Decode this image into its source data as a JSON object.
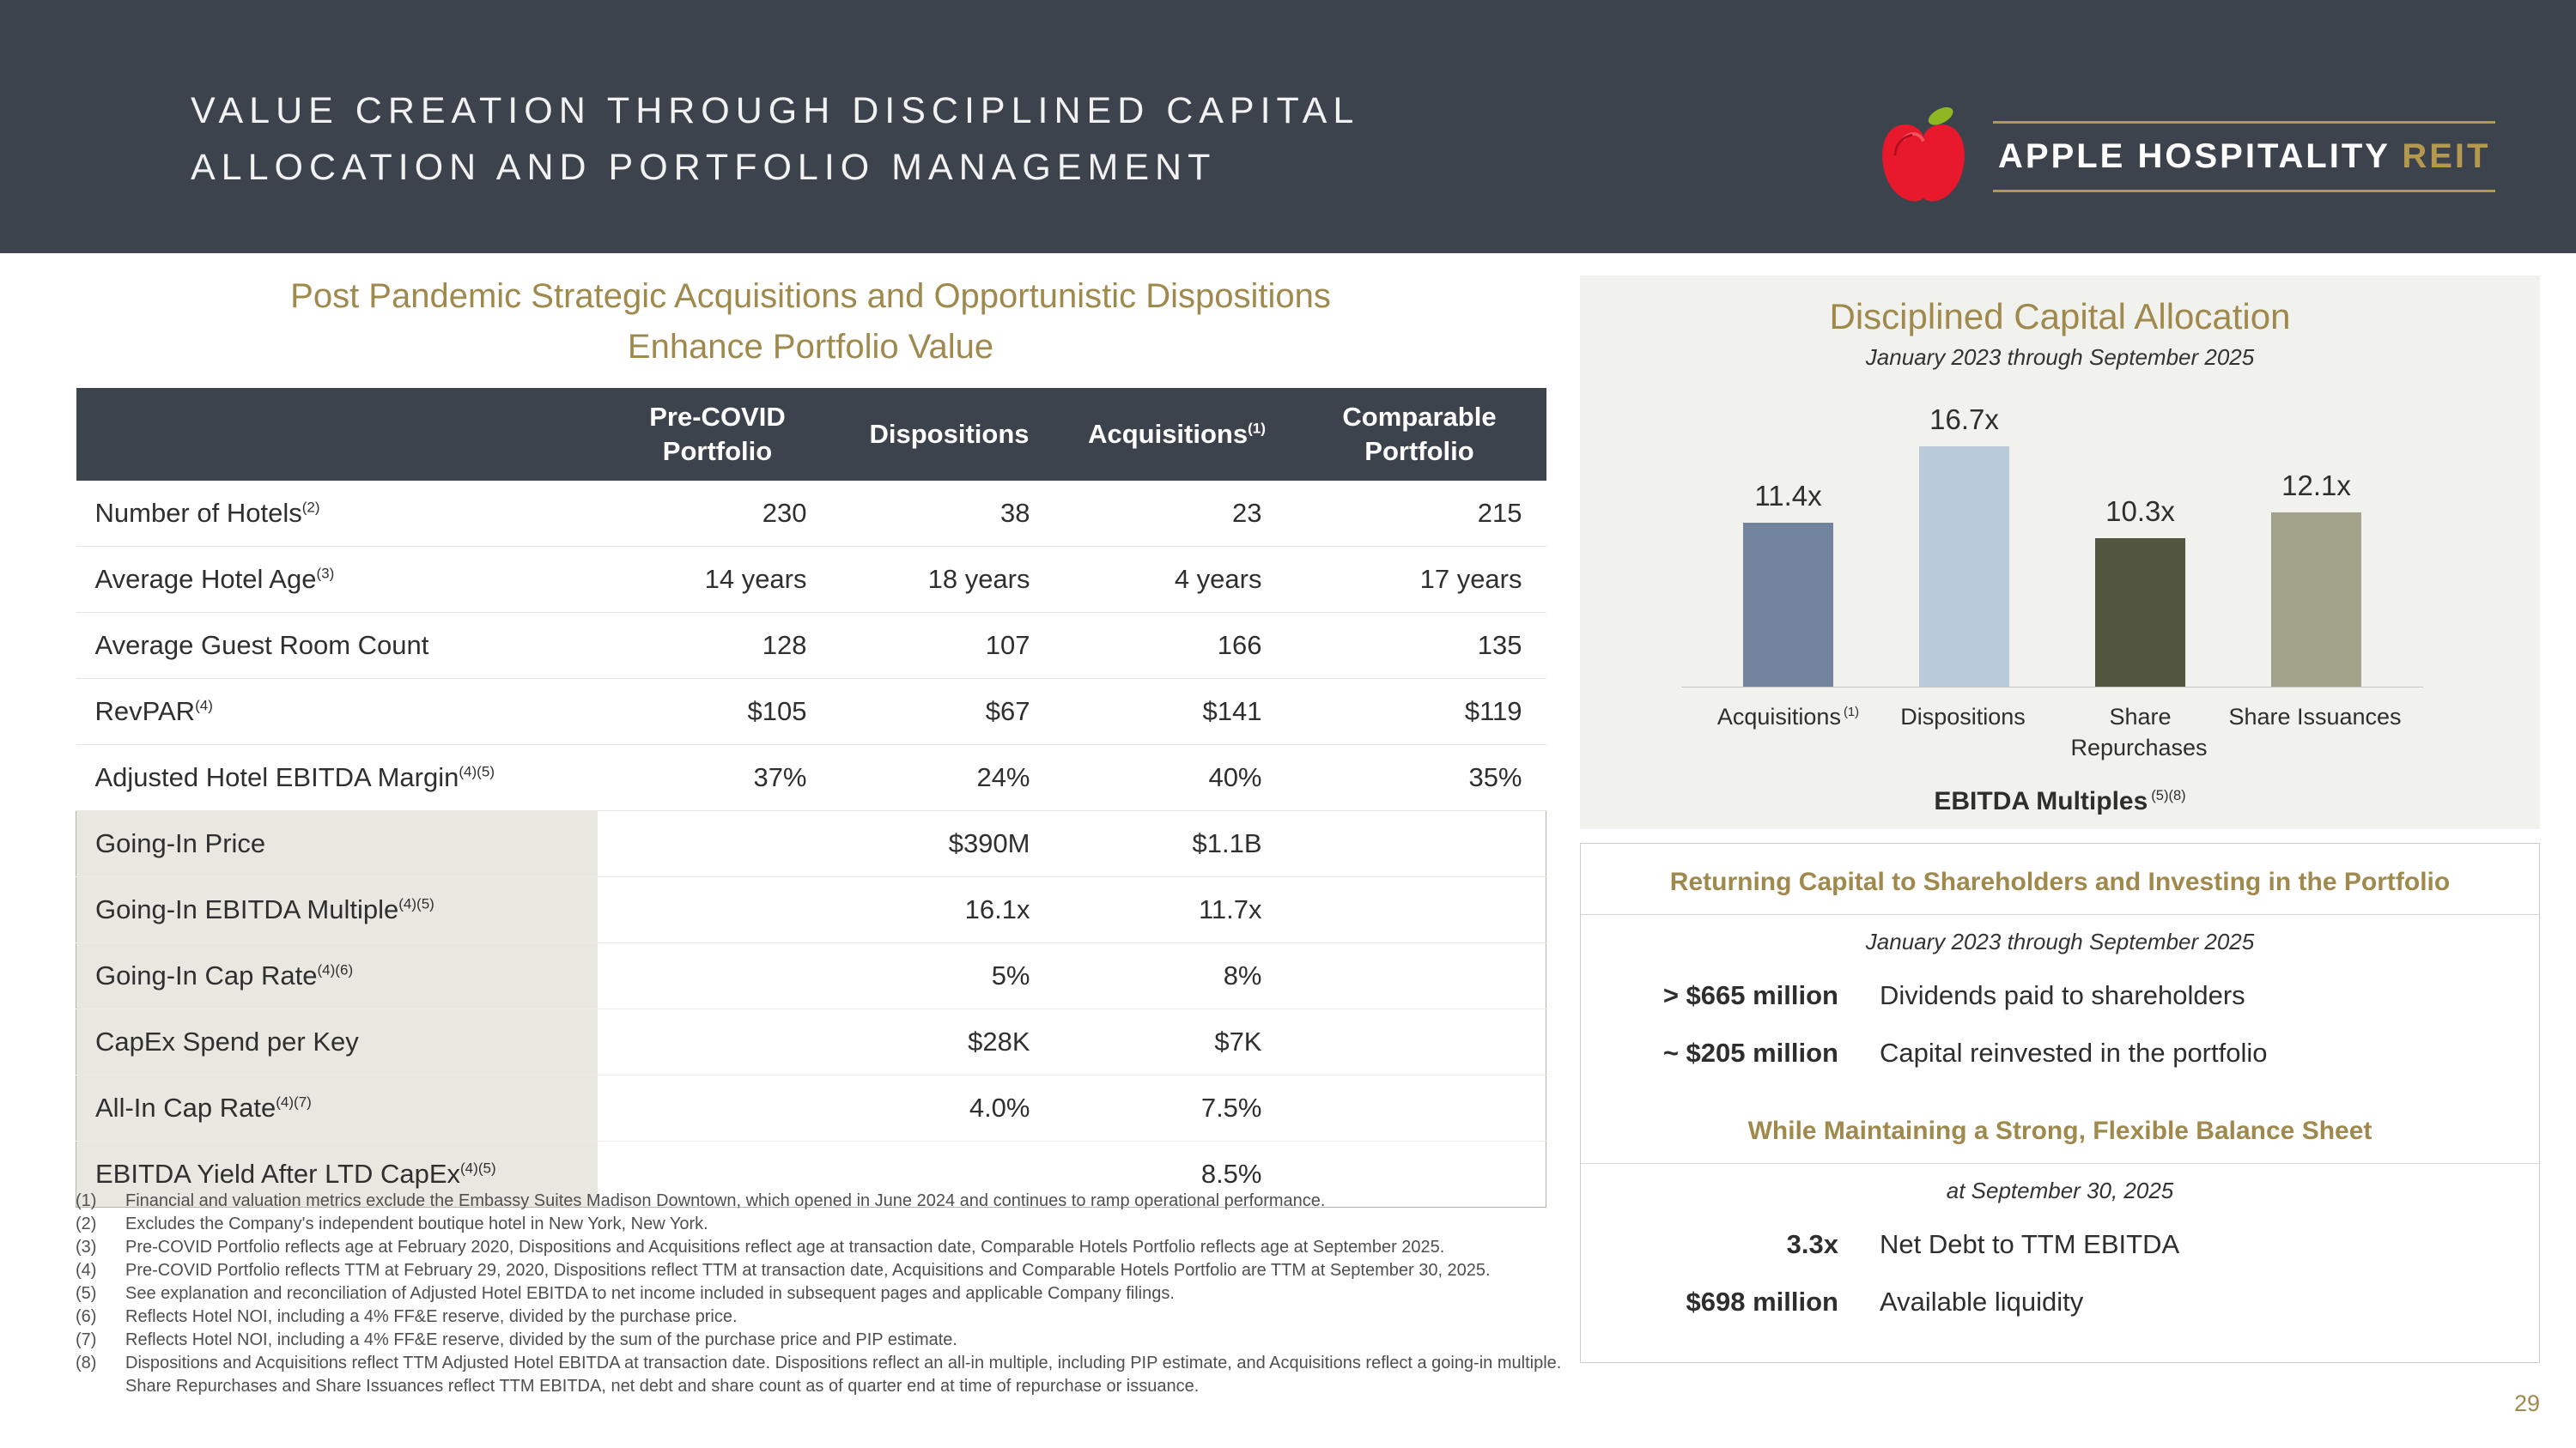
{
  "header": {
    "title_line1": "VALUE CREATION THROUGH DISCIPLINED CAPITAL",
    "title_line2": "ALLOCATION AND PORTFOLIO MANAGEMENT",
    "brand": {
      "name": "APPLE HOSPITALITY",
      "suffix": "REIT"
    }
  },
  "left": {
    "title_line1": "Post Pandemic Strategic Acquisitions and Opportunistic Dispositions",
    "title_line2": "Enhance Portfolio Value",
    "table": {
      "columns": [
        {
          "text": "Pre-COVID\nPortfolio",
          "sup": ""
        },
        {
          "text": "Dispositions",
          "sup": ""
        },
        {
          "text": "Acquisitions",
          "sup": "(1)"
        },
        {
          "text": "Comparable\nPortfolio",
          "sup": ""
        }
      ],
      "rows": [
        {
          "label": "Number of Hotels",
          "sup": "(2)",
          "values": [
            "230",
            "38",
            "23",
            "215"
          ]
        },
        {
          "label": "Average Hotel Age",
          "sup": "(3)",
          "values": [
            "14 years",
            "18 years",
            "4 years",
            "17 years"
          ]
        },
        {
          "label": "Average Guest Room Count",
          "sup": "",
          "values": [
            "128",
            "107",
            "166",
            "135"
          ]
        },
        {
          "label": "RevPAR",
          "sup": "(4)",
          "values": [
            "$105",
            "$67",
            "$141",
            "$119"
          ]
        },
        {
          "label": "Adjusted Hotel EBITDA Margin",
          "sup": "(4)(5)",
          "values": [
            "37%",
            "24%",
            "40%",
            "35%"
          ]
        },
        {
          "label": "Going-In Price",
          "sup": "",
          "values": [
            "",
            "$390M",
            "$1.1B",
            ""
          ]
        },
        {
          "label": "Going-In EBITDA Multiple",
          "sup": "(4)(5)",
          "values": [
            "",
            "16.1x",
            "11.7x",
            ""
          ]
        },
        {
          "label": "Going-In Cap Rate",
          "sup": "(4)(6)",
          "values": [
            "",
            "5%",
            "8%",
            ""
          ]
        },
        {
          "label": "CapEx Spend per Key",
          "sup": "",
          "values": [
            "",
            "$28K",
            "$7K",
            ""
          ]
        },
        {
          "label": "All-In Cap Rate",
          "sup": "(4)(7)",
          "values": [
            "",
            "4.0%",
            "7.5%",
            ""
          ]
        },
        {
          "label": "EBITDA Yield After LTD CapEx",
          "sup": "(4)(5)",
          "values": [
            "",
            "",
            "8.5%",
            ""
          ]
        }
      ]
    },
    "footnotes": [
      {
        "num": "(1)",
        "text": "Financial and valuation metrics exclude the Embassy Suites Madison Downtown, which opened in June 2024 and continues to ramp operational performance."
      },
      {
        "num": "(2)",
        "text": "Excludes the Company's independent boutique hotel in New York, New York."
      },
      {
        "num": "(3)",
        "text": "Pre-COVID Portfolio reflects age at February 2020, Dispositions and Acquisitions reflect age at transaction date, Comparable Hotels Portfolio reflects age at September 2025."
      },
      {
        "num": "(4)",
        "text": "Pre-COVID Portfolio reflects TTM at February 29, 2020, Dispositions reflect TTM at transaction date, Acquisitions and Comparable Hotels Portfolio are TTM at September 30, 2025."
      },
      {
        "num": "(5)",
        "text": "See explanation and reconciliation of Adjusted Hotel EBITDA to net income included in subsequent pages and applicable Company filings."
      },
      {
        "num": "(6)",
        "text": "Reflects Hotel NOI, including a 4% FF&E reserve, divided by the purchase price."
      },
      {
        "num": "(7)",
        "text": "Reflects Hotel NOI, including a 4% FF&E reserve, divided by the sum of the purchase price and PIP estimate."
      },
      {
        "num": "(8)",
        "text": "Dispositions and Acquisitions reflect TTM Adjusted Hotel EBITDA at transaction date. Dispositions reflect an all-in multiple, including PIP estimate, and Acquisitions reflect a going-in multiple. Share Repurchases and Share Issuances reflect TTM EBITDA, net debt and share count as of quarter end at time of repurchase or issuance."
      }
    ]
  },
  "capital_allocation": {
    "title": "Disciplined Capital Allocation",
    "subtitle": "January 2023 through September 2025",
    "footer_label": "EBITDA Multiples",
    "footer_sup": "(5)(8)"
  },
  "chart_data": {
    "type": "bar",
    "title": "Disciplined Capital Allocation",
    "subtitle": "January 2023 through September 2025",
    "categories": [
      "Acquisitions",
      "Dispositions",
      "Share Repurchases",
      "Share Issuances"
    ],
    "category_sups": [
      "(1)",
      "",
      "",
      ""
    ],
    "values": [
      11.4,
      16.7,
      10.3,
      12.1
    ],
    "value_labels": [
      "11.4x",
      "16.7x",
      "10.3x",
      "12.1x"
    ],
    "colors": [
      "#72839e",
      "#b9cbdb",
      "#53563e",
      "#a2a18a"
    ],
    "xlabel": "",
    "ylabel": "EBITDA Multiples (5)(8)",
    "ylim": [
      0,
      18
    ],
    "grid": false,
    "legend": "none"
  },
  "returning_capital": {
    "title": "Returning Capital to Shareholders and Investing in the Portfolio",
    "subtitle": "January 2023 through September 2025",
    "rows": [
      {
        "value": "> $665 million",
        "desc": "Dividends paid to shareholders"
      },
      {
        "value": "~ $205 million",
        "desc": "Capital reinvested in the portfolio"
      }
    ],
    "title2": "While Maintaining a Strong, Flexible Balance Sheet",
    "subtitle2": "at September 30, 2025",
    "rows2": [
      {
        "value": "3.3x",
        "desc": "Net Debt to TTM EBITDA"
      },
      {
        "value": "$698 million",
        "desc": "Available liquidity"
      }
    ]
  },
  "page_number": "29",
  "colors": {
    "header_bg": "#3d434d",
    "accent_gold": "#a0894c",
    "brand_gold": "#b4984e",
    "panel_bg": "#f1f1ed",
    "highlight_label_bg": "#e9e8e0"
  }
}
